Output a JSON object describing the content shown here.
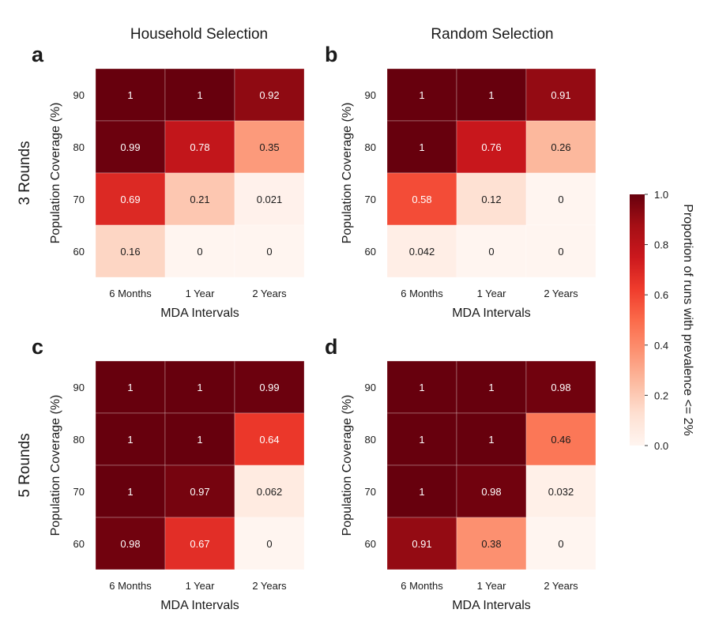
{
  "figure": {
    "column_titles": [
      "Household Selection",
      "Random Selection"
    ],
    "row_titles": [
      "3 Rounds",
      "5 Rounds"
    ]
  },
  "chart_data": [
    {
      "type": "heatmap",
      "panel": "a",
      "xlabel": "MDA Intervals",
      "ylabel": "Population Coverage (%)",
      "x_categories": [
        "6 Months",
        "1 Year",
        "2 Years"
      ],
      "y_categories": [
        "90",
        "80",
        "70",
        "60"
      ],
      "values": [
        [
          1,
          1,
          0.92
        ],
        [
          0.99,
          0.78,
          0.35
        ],
        [
          0.69,
          0.21,
          0.021
        ],
        [
          0.16,
          0,
          0
        ]
      ],
      "labels": [
        [
          "1",
          "1",
          "0.92"
        ],
        [
          "0.99",
          "0.78",
          "0.35"
        ],
        [
          "0.69",
          "0.21",
          "0.021"
        ],
        [
          "0.16",
          "0",
          "0"
        ]
      ]
    },
    {
      "type": "heatmap",
      "panel": "b",
      "xlabel": "MDA Intervals",
      "ylabel": "Population Coverage (%)",
      "x_categories": [
        "6 Months",
        "1 Year",
        "2 Years"
      ],
      "y_categories": [
        "90",
        "80",
        "70",
        "60"
      ],
      "values": [
        [
          1,
          1,
          0.91
        ],
        [
          1,
          0.76,
          0.26
        ],
        [
          0.58,
          0.12,
          0
        ],
        [
          0.042,
          0,
          0
        ]
      ],
      "labels": [
        [
          "1",
          "1",
          "0.91"
        ],
        [
          "1",
          "0.76",
          "0.26"
        ],
        [
          "0.58",
          "0.12",
          "0"
        ],
        [
          "0.042",
          "0",
          "0"
        ]
      ]
    },
    {
      "type": "heatmap",
      "panel": "c",
      "xlabel": "MDA Intervals",
      "ylabel": "Population Coverage (%)",
      "x_categories": [
        "6 Months",
        "1 Year",
        "2 Years"
      ],
      "y_categories": [
        "90",
        "80",
        "70",
        "60"
      ],
      "values": [
        [
          1,
          1,
          0.99
        ],
        [
          1,
          1,
          0.64
        ],
        [
          1,
          0.97,
          0.062
        ],
        [
          0.98,
          0.67,
          0
        ]
      ],
      "labels": [
        [
          "1",
          "1",
          "0.99"
        ],
        [
          "1",
          "1",
          "0.64"
        ],
        [
          "1",
          "0.97",
          "0.062"
        ],
        [
          "0.98",
          "0.67",
          "0"
        ]
      ]
    },
    {
      "type": "heatmap",
      "panel": "d",
      "xlabel": "MDA Intervals",
      "ylabel": "Population Coverage (%)",
      "x_categories": [
        "6 Months",
        "1 Year",
        "2 Years"
      ],
      "y_categories": [
        "90",
        "80",
        "70",
        "60"
      ],
      "values": [
        [
          1,
          1,
          0.98
        ],
        [
          1,
          1,
          0.46
        ],
        [
          1,
          0.98,
          0.032
        ],
        [
          0.91,
          0.38,
          0
        ]
      ],
      "labels": [
        [
          "1",
          "1",
          "0.98"
        ],
        [
          "1",
          "1",
          "0.46"
        ],
        [
          "1",
          "0.98",
          "0.032"
        ],
        [
          "0.91",
          "0.38",
          "0"
        ]
      ]
    }
  ],
  "colorbar": {
    "label": "Proportion of runs with prevalence <= 2%",
    "range": [
      0,
      1
    ],
    "ticks": [
      "0.0",
      "0.2",
      "0.4",
      "0.6",
      "0.8",
      "1.0"
    ],
    "colors": [
      "#fff5f0",
      "#fee0d2",
      "#fcbba1",
      "#fc9272",
      "#fb6a4a",
      "#ef3b2c",
      "#cb181d",
      "#a50f15",
      "#67000d"
    ]
  }
}
